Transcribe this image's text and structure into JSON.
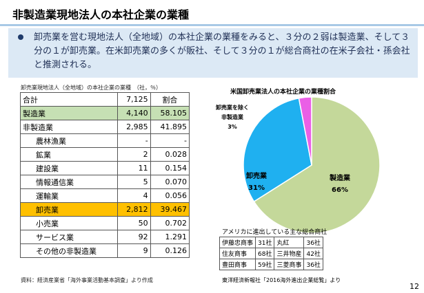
{
  "title": "非製造業現地法人の本社企業の業種",
  "summary": "卸売業を営む現地法人（全地域）の本社企業の業種をみると、３分の２弱は製造業、そして３分の１が卸売業。在米卸売業の多くが販社、そして３分の１が総合商社の在米子会社・孫会社と推測される。",
  "table": {
    "caption": "卸売業現地法人（全地域）の本社企業の業種　（社，％）",
    "headers": [
      "合計",
      "7,125",
      "割合"
    ],
    "rows": [
      {
        "label": "製造業",
        "count": "4,140",
        "rate": "58.105"
      },
      {
        "label": "非製造業",
        "count": "2,985",
        "rate": "41.895"
      },
      {
        "label": "農林漁業",
        "count": "-",
        "rate": "-"
      },
      {
        "label": "鉱業",
        "count": "2",
        "rate": "0.028"
      },
      {
        "label": "建設業",
        "count": "11",
        "rate": "0.154"
      },
      {
        "label": "情報通信業",
        "count": "5",
        "rate": "0.070"
      },
      {
        "label": "運輸業",
        "count": "4",
        "rate": "0.056"
      },
      {
        "label": "卸売業",
        "count": "2,812",
        "rate": "39.467"
      },
      {
        "label": "小売業",
        "count": "50",
        "rate": "0.702"
      },
      {
        "label": "サービス業",
        "count": "92",
        "rate": "1.291"
      },
      {
        "label": "その他の非製造業",
        "count": "9",
        "rate": "0.126"
      }
    ],
    "source": "資料：経済産業省「海外事業活動基本調査」より作成"
  },
  "chart_data": {
    "type": "pie",
    "title": "米国卸売業法人の本社企業の業種割合",
    "slices": [
      {
        "name": "製造業",
        "value": 66,
        "label": "66%",
        "color": "#c4d89a"
      },
      {
        "name": "卸売業",
        "value": 31,
        "label": "31%",
        "color": "#1fb0f0"
      },
      {
        "name": "卸売業を除く非製造業",
        "value": 3,
        "label": "3%",
        "color": "#ea5fe6"
      }
    ]
  },
  "chart_labels": {
    "manufacturing": "製造業",
    "manufacturing_pct": "66%",
    "wholesale": "卸売業",
    "wholesale_pct": "31%",
    "other_line1": "卸売業を除く",
    "other_line2": "非製造業",
    "other_pct": "3%"
  },
  "trading": {
    "title": "アメリカに進出している主な総合商社",
    "rows": [
      [
        "伊藤忠商事",
        "31社",
        "丸紅",
        "36社"
      ],
      [
        "住友商事",
        "68社",
        "三井物産",
        "42社"
      ],
      [
        "豊田商事",
        "59社",
        "三菱商事",
        "36社"
      ]
    ],
    "source": "東洋経済新報社「2016海外進出企業総覧」より"
  },
  "page_number": "12"
}
